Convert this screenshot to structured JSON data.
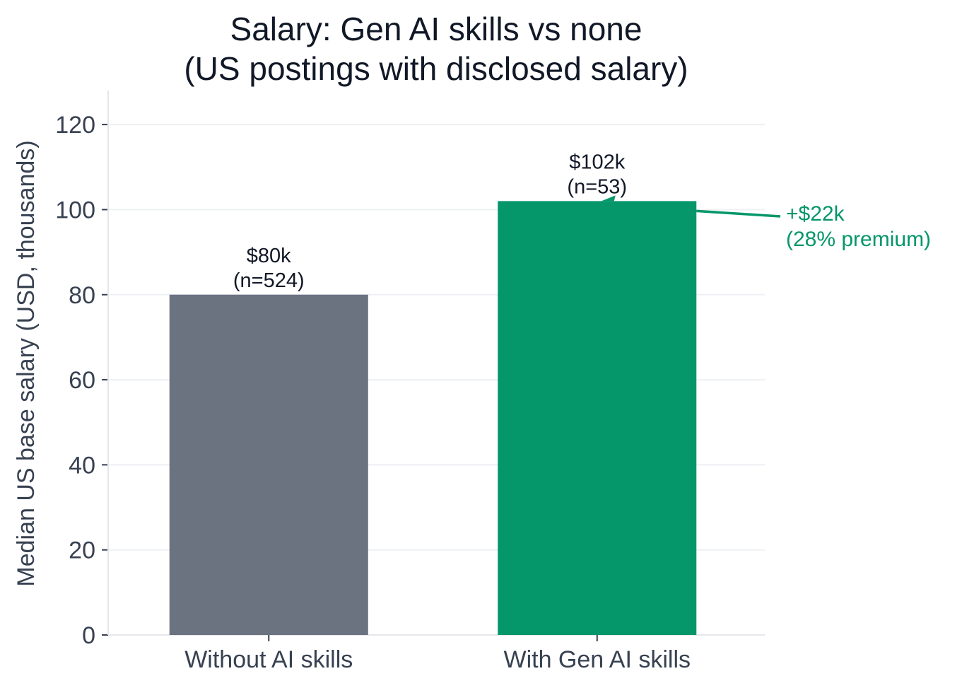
{
  "chart_data": {
    "type": "bar",
    "title_lines": [
      "Salary: Gen AI skills vs none",
      "(US postings with disclosed salary)"
    ],
    "xlabel": "",
    "ylabel": "Median US base salary (USD, thousands)",
    "ylim": [
      0,
      128
    ],
    "yticks": [
      0,
      20,
      40,
      60,
      80,
      100,
      120
    ],
    "grid": "horizontal",
    "categories": [
      "Without AI skills",
      "With Gen AI skills"
    ],
    "values": [
      80,
      102
    ],
    "colors": [
      "#6b7280",
      "#059669"
    ],
    "bar_labels": [
      [
        "$80k",
        "(n=524)"
      ],
      [
        "$102k",
        "(n=53)"
      ]
    ],
    "annotation": {
      "lines": [
        "+$22k",
        "(28% premium)"
      ],
      "color": "#059669",
      "points_to": "With Gen AI skills"
    }
  }
}
